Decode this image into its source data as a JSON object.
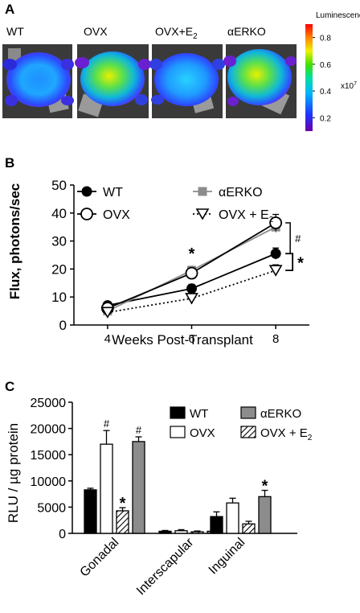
{
  "panels": {
    "a": "A",
    "b": "B",
    "c": "C"
  },
  "colors": {
    "black": "#000000",
    "gray": "#8c8c8c",
    "white": "#ffffff"
  },
  "imaging": {
    "groups": [
      {
        "label": "WT",
        "sub": ""
      },
      {
        "label": "OVX",
        "sub": ""
      },
      {
        "label": "OVX+E",
        "sub": "2"
      },
      {
        "label": "αERKO",
        "sub": ""
      }
    ],
    "colorbar": {
      "title": "Luminescence",
      "ticks": [
        "0.8",
        "0.6",
        "0.4",
        "0.2"
      ],
      "tick_values": [
        0.8,
        0.6,
        0.4,
        0.2
      ],
      "multiplier": "x10",
      "multiplier_exp": "7"
    }
  },
  "chart_data": [
    {
      "type": "line",
      "xlabel": "Weeks Post-Transplant",
      "ylabel": "Flux, photons/sec",
      "x": [
        4,
        6,
        8
      ],
      "xticks": [
        "4",
        "6",
        "8"
      ],
      "ylim": [
        0,
        50
      ],
      "yticks": [
        "0",
        "10",
        "20",
        "30",
        "40",
        "50"
      ],
      "series": [
        {
          "name": "WT",
          "values": [
            7,
            13,
            25.5
          ],
          "err": [
            1,
            1.5,
            2
          ],
          "marker": "filled-circle",
          "style": "solid",
          "color": "#000000"
        },
        {
          "name": "αERKO",
          "values": [
            5,
            19.5,
            35
          ],
          "err": [
            1,
            1.5,
            2
          ],
          "marker": "square",
          "style": "solid",
          "color": "#8c8c8c"
        },
        {
          "name": "OVX",
          "values": [
            6,
            18.5,
            36.5
          ],
          "err": [
            1,
            1.5,
            3
          ],
          "marker": "open-circle",
          "style": "solid",
          "color": "#000000"
        },
        {
          "name": "OVX + E",
          "sub": "2",
          "values": [
            4.5,
            9.5,
            19.5
          ],
          "err": [
            1,
            2,
            2
          ],
          "marker": "open-triangle",
          "style": "dotted",
          "color": "#000000"
        }
      ],
      "annotations": {
        "star_mid": "*",
        "hash": "#",
        "star_bracket": "*"
      }
    },
    {
      "type": "bar",
      "ylabel": "RLU / µg protein",
      "categories": [
        "Gonadal",
        "Interscapular",
        "Inguinal"
      ],
      "ylim": [
        0,
        25000
      ],
      "yticks": [
        "0",
        "5000",
        "10000",
        "15000",
        "20000",
        "25000"
      ],
      "series": [
        {
          "name": "WT",
          "values": [
            8300,
            400,
            3200
          ],
          "err": [
            300,
            150,
            900
          ],
          "fill": "black"
        },
        {
          "name": "OVX",
          "values": [
            17000,
            500,
            5800
          ],
          "err": [
            2600,
            200,
            900
          ],
          "fill": "white"
        },
        {
          "name": "OVX + E",
          "sub": "2",
          "values": [
            4300,
            300,
            1800
          ],
          "err": [
            600,
            150,
            500
          ],
          "fill": "hatch"
        },
        {
          "name": "αERKO",
          "values": [
            17500,
            400,
            7000
          ],
          "err": [
            900,
            150,
            1200
          ],
          "fill": "gray"
        }
      ],
      "annotations": {
        "hash": "#",
        "star": "*"
      }
    }
  ]
}
